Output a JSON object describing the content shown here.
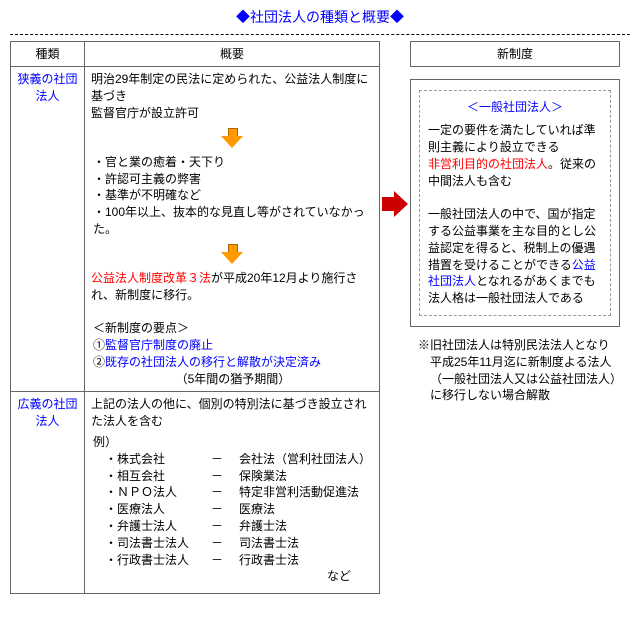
{
  "title": "◆社団法人の種類と概要◆",
  "headers": {
    "type": "種類",
    "overview": "概要",
    "new": "新制度"
  },
  "narrow": {
    "label": "狭義の社団法人",
    "p1a": "明治29年制定の民法に定められた、公益法人制度に基づき",
    "p1b": "監督官庁が設立許可",
    "b1": "官と業の癒着・天下り",
    "b2": "許認可主義の弊害",
    "b3": "基準が不明確など",
    "b4": "100年以上、抜本的な見直し等がされていなかった。",
    "p2a": "公益法人制度改革３法",
    "p2b": "が平成20年12月より施行され、新制度に移行。",
    "pts_head": "＜新制度の要点＞",
    "pt1a": "①",
    "pt1b": "監督官庁制度の廃止",
    "pt2a": "②",
    "pt2b": "既存の社団法人の移行と解散が決定済み",
    "pt2c": "（5年間の猶予期間）"
  },
  "broad": {
    "label": "広義の社団法人",
    "lead": "上記の法人の他に、個別の特別法に基づき設立された法人を含む",
    "ex_label": "例）",
    "r1a": "株式会社",
    "r1b": "会社法（営利社団法人）",
    "r2a": "相互会社",
    "r2b": "保険業法",
    "r3a": "ＮＰＯ法人",
    "r3b": "特定非営利活動促進法",
    "r4a": "医療法人",
    "r4b": "医療法",
    "r5a": "弁護士法人",
    "r5b": "弁護士法",
    "r6a": "司法書士法人",
    "r6b": "司法書士法",
    "r7a": "行政書士法人",
    "r7b": "行政書士法",
    "dash": "－",
    "nado": "など"
  },
  "new": {
    "label": "＜一般社団法人＞",
    "p1": "一定の要件を満たしていれば準則主義により設立できる",
    "p2a": "非営利目的の社団法人",
    "p2b": "。従来の中間法人も含む",
    "p3a": "一般社団法人の中で、国が指定する公益事業を主な目的とし公益認定を得ると、税制上の優遇措置を受けることができる",
    "p3b": "公益社団法人",
    "p3c": "となれるがあくまでも法人格は一般社団法人である"
  },
  "foot": "※旧社団法人は特別民法法人となり平成25年11月迄に新制度よる法人（一般社団法人又は公益社団法人）に移行しない場合解散"
}
